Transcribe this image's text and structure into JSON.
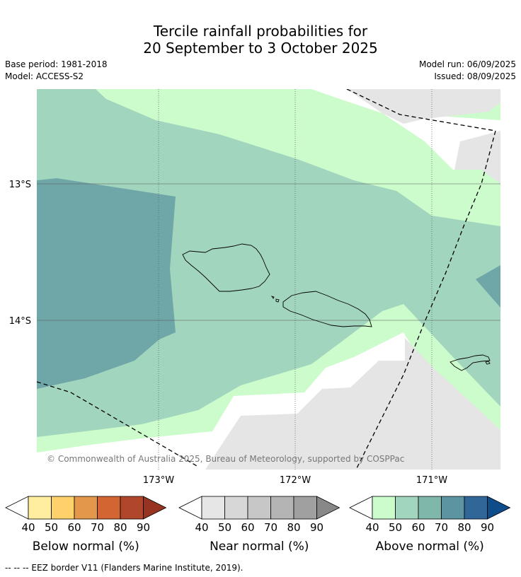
{
  "title": {
    "line1": "Tercile rainfall probabilities for",
    "line2": "20 September to 3 October 2025"
  },
  "meta_left": {
    "base_period": "Base period: 1981-2018",
    "model": "Model: ACCESS-S2"
  },
  "meta_right": {
    "model_run": "Model run: 06/09/2025",
    "issued": "Issued: 08/09/2025"
  },
  "map": {
    "lat_labels": [
      "13°S",
      "14°S"
    ],
    "lon_labels": [
      "173°W",
      "172°W",
      "171°W"
    ],
    "copyright": "© Commonwealth of Australia 2025, Bureau of Meteorology, supported by COSPPac",
    "colors": {
      "above_50": "#ccfccb",
      "above_60": "#a2d5bd",
      "above_70": "#6fa7a8",
      "near_normal": "#e5e5e5",
      "eez_line": "#000000"
    }
  },
  "legends": [
    {
      "title": "Below normal (%)",
      "ticks": [
        "40",
        "50",
        "60",
        "70",
        "80",
        "90"
      ],
      "colors": [
        "#ffeda0",
        "#fed16a",
        "#e3974b",
        "#d26531",
        "#b0472a",
        "#973421"
      ]
    },
    {
      "title": "Near normal (%)",
      "ticks": [
        "40",
        "50",
        "60",
        "70",
        "80",
        "90"
      ],
      "colors": [
        "#e6e6e6",
        "#d7d7d7",
        "#c7c7c7",
        "#b4b4b4",
        "#a0a0a0",
        "#888888"
      ]
    },
    {
      "title": "Above normal (%)",
      "ticks": [
        "40",
        "50",
        "60",
        "70",
        "80",
        "90"
      ],
      "colors": [
        "#ccfccb",
        "#a2d5bd",
        "#80b7ab",
        "#5c94a1",
        "#306698",
        "#0f4c8a"
      ]
    }
  ],
  "footer": "--  --  -- EEZ border V11 (Flanders Marine Institute, 2019)."
}
